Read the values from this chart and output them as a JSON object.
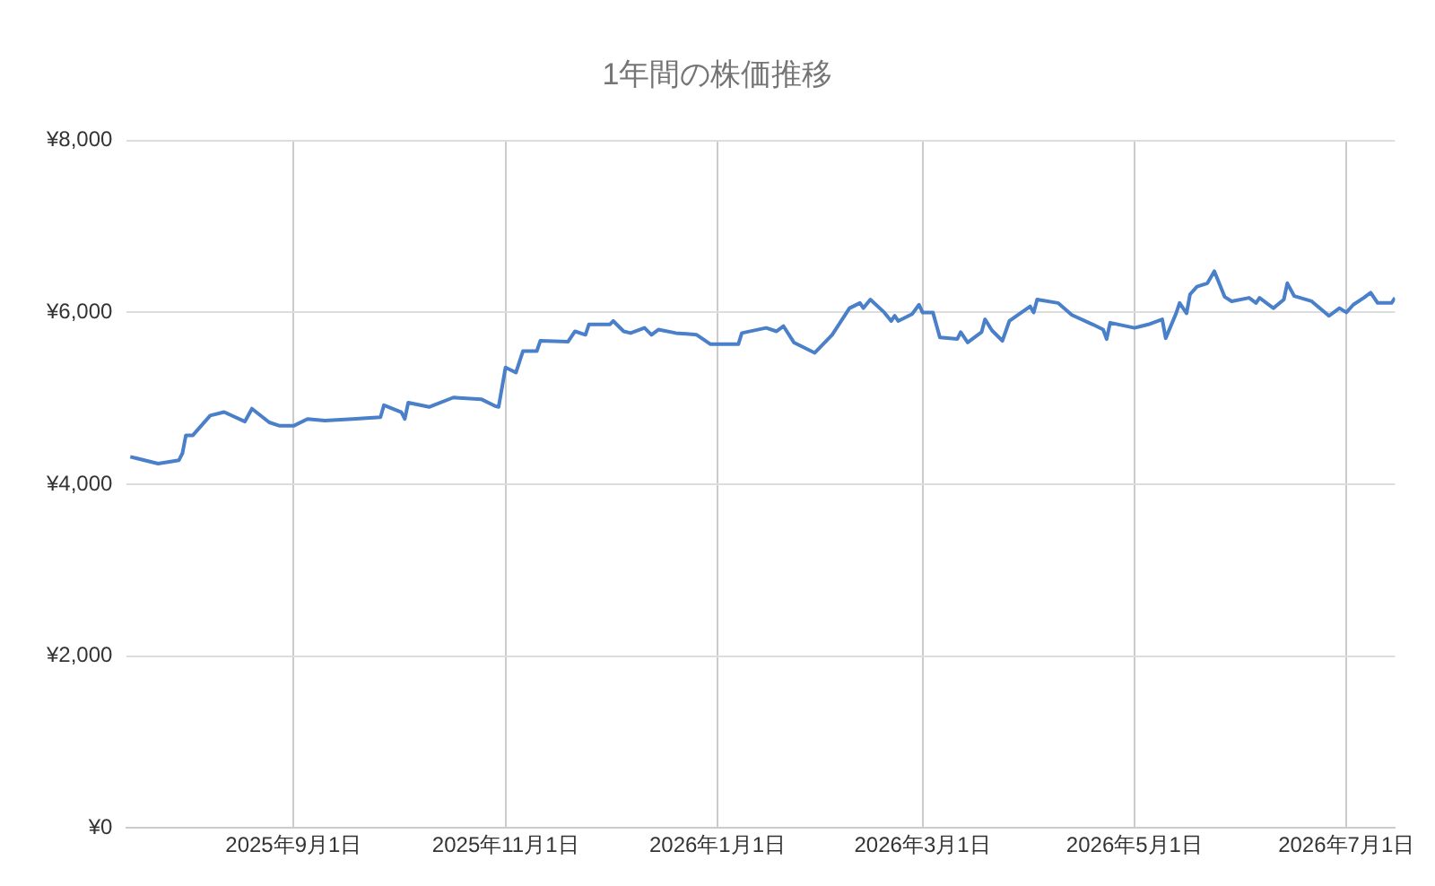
{
  "chart_data": {
    "type": "line",
    "title": "1年間の株価推移",
    "x": [
      "2025-07-16",
      "2025-07-18",
      "2025-07-24",
      "2025-07-30",
      "2025-07-31",
      "2025-08-01",
      "2025-08-03",
      "2025-08-08",
      "2025-08-12",
      "2025-08-18",
      "2025-08-20",
      "2025-08-25",
      "2025-08-28",
      "2025-09-01",
      "2025-09-05",
      "2025-09-10",
      "2025-09-18",
      "2025-09-26",
      "2025-09-27",
      "2025-10-02",
      "2025-10-03",
      "2025-10-04",
      "2025-10-10",
      "2025-10-17",
      "2025-10-25",
      "2025-10-29",
      "2025-10-30",
      "2025-11-01",
      "2025-11-04",
      "2025-11-06",
      "2025-11-10",
      "2025-11-11",
      "2025-11-19",
      "2025-11-21",
      "2025-11-24",
      "2025-11-25",
      "2025-12-01",
      "2025-12-02",
      "2025-12-05",
      "2025-12-07",
      "2025-12-11",
      "2025-12-13",
      "2025-12-15",
      "2025-12-20",
      "2025-12-26",
      "2025-12-30",
      "2026-01-07",
      "2026-01-08",
      "2026-01-15",
      "2026-01-18",
      "2026-01-20",
      "2026-01-23",
      "2026-01-29",
      "2026-02-03",
      "2026-02-08",
      "2026-02-11",
      "2026-02-12",
      "2026-02-14",
      "2026-02-18",
      "2026-02-20",
      "2026-02-21",
      "2026-02-22",
      "2026-02-26",
      "2026-02-28",
      "2026-03-01",
      "2026-03-04",
      "2026-03-06",
      "2026-03-11",
      "2026-03-12",
      "2026-03-14",
      "2026-03-18",
      "2026-03-19",
      "2026-03-21",
      "2026-03-24",
      "2026-03-26",
      "2026-04-01",
      "2026-04-02",
      "2026-04-03",
      "2026-04-09",
      "2026-04-13",
      "2026-04-19",
      "2026-04-22",
      "2026-04-23",
      "2026-04-24",
      "2026-05-01",
      "2026-05-05",
      "2026-05-09",
      "2026-05-10",
      "2026-05-13",
      "2026-05-14",
      "2026-05-16",
      "2026-05-17",
      "2026-05-19",
      "2026-05-22",
      "2026-05-24",
      "2026-05-27",
      "2026-05-29",
      "2026-06-03",
      "2026-06-05",
      "2026-06-06",
      "2026-06-10",
      "2026-06-13",
      "2026-06-14",
      "2026-06-16",
      "2026-06-21",
      "2026-06-26",
      "2026-06-29",
      "2026-07-01",
      "2026-07-03",
      "2026-07-06",
      "2026-07-08",
      "2026-07-10",
      "2026-07-14",
      "2026-07-15"
    ],
    "series": [
      {
        "color": "#4a7fc9",
        "values": [
          4320,
          4300,
          4240,
          4280,
          4360,
          4570,
          4570,
          4800,
          4840,
          4730,
          4880,
          4720,
          4680,
          4680,
          4760,
          4740,
          4760,
          4780,
          4920,
          4840,
          4760,
          4950,
          4900,
          5010,
          4990,
          4910,
          4900,
          5360,
          5300,
          5550,
          5550,
          5670,
          5660,
          5780,
          5740,
          5860,
          5860,
          5900,
          5780,
          5760,
          5820,
          5740,
          5800,
          5760,
          5740,
          5630,
          5630,
          5760,
          5820,
          5780,
          5840,
          5650,
          5530,
          5740,
          6050,
          6110,
          6050,
          6150,
          6000,
          5900,
          5960,
          5900,
          5980,
          6090,
          6000,
          6000,
          5710,
          5690,
          5770,
          5650,
          5770,
          5920,
          5790,
          5670,
          5900,
          6070,
          6000,
          6150,
          6110,
          5970,
          5860,
          5800,
          5690,
          5880,
          5820,
          5860,
          5920,
          5700,
          5990,
          6110,
          5990,
          6210,
          6300,
          6340,
          6480,
          6180,
          6130,
          6170,
          6110,
          6170,
          6050,
          6150,
          6340,
          6190,
          6130,
          5960,
          6050,
          6000,
          6090,
          6170,
          6230,
          6110,
          6110,
          6170
        ]
      }
    ],
    "xlim": [
      "2025-07-15",
      "2026-07-15"
    ],
    "xticks": [
      {
        "value": "2025-09-01",
        "label": "2025年9月1日"
      },
      {
        "value": "2025-11-01",
        "label": "2025年11月1日"
      },
      {
        "value": "2026-01-01",
        "label": "2026年1月1日"
      },
      {
        "value": "2026-03-01",
        "label": "2026年3月1日"
      },
      {
        "value": "2026-05-01",
        "label": "2026年5月1日"
      },
      {
        "value": "2026-07-01",
        "label": "2026年7月1日"
      }
    ],
    "ylim": [
      0,
      8000
    ],
    "yticks": [
      {
        "value": 0,
        "label": "¥0"
      },
      {
        "value": 2000,
        "label": "¥2,000"
      },
      {
        "value": 4000,
        "label": "¥4,000"
      },
      {
        "value": 6000,
        "label": "¥6,000"
      },
      {
        "value": 8000,
        "label": "¥8,000"
      }
    ],
    "grid": true,
    "legend": false,
    "marker": "none",
    "line_style": "solid"
  }
}
